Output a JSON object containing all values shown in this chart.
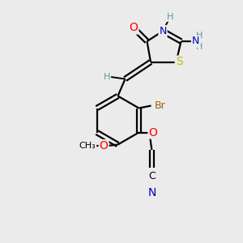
{
  "bg_color": "#ebebeb",
  "atom_colors": {
    "O": "#ff0000",
    "N": "#0000bb",
    "S": "#bbbb00",
    "Br": "#996600",
    "C": "#000000",
    "H": "#559999"
  },
  "figsize": [
    3.0,
    3.0
  ],
  "dpi": 100
}
